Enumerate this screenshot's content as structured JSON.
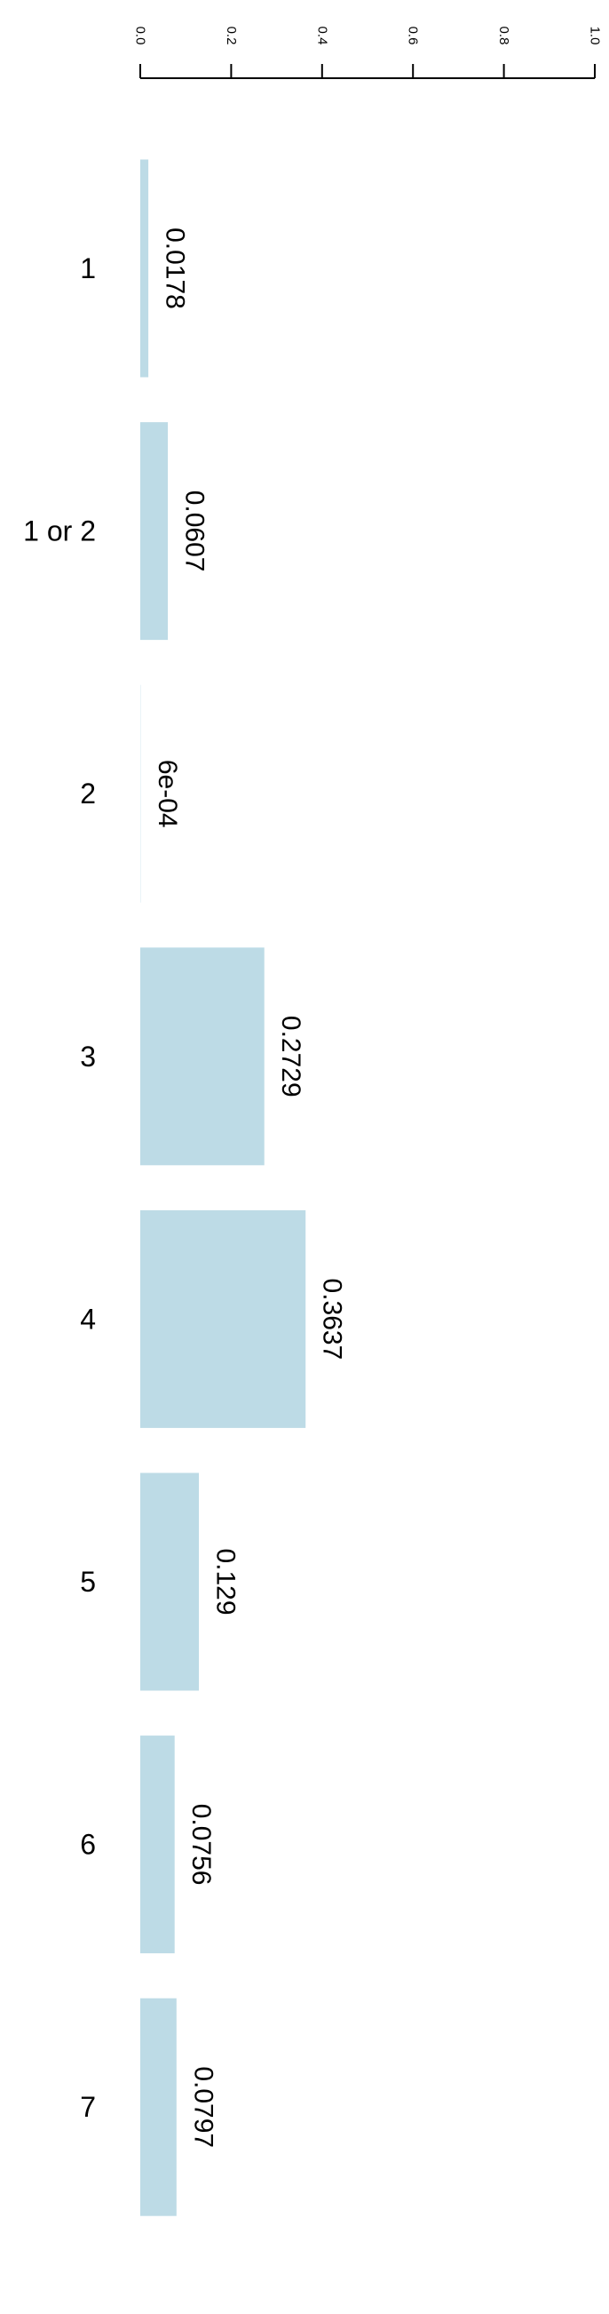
{
  "chart_data": {
    "type": "bar",
    "orientation": "horizontal",
    "categories": [
      "1",
      "1 or 2",
      "2",
      "3",
      "4",
      "5",
      "6",
      "7"
    ],
    "values": [
      0.0178,
      0.0607,
      0.0006,
      0.2729,
      0.3637,
      0.129,
      0.0756,
      0.0797
    ],
    "value_labels": [
      "0.0178",
      "0.0607",
      "6e-04",
      "0.2729",
      "0.3637",
      "0.129",
      "0.0756",
      "0.0797"
    ],
    "xlim": [
      0,
      1
    ],
    "x_ticks": [
      0.0,
      0.2,
      0.4,
      0.6,
      0.8,
      1.0
    ],
    "x_tick_labels": [
      "0.0",
      "0.2",
      "0.4",
      "0.6",
      "0.8",
      "1.0"
    ],
    "axis_position": "top",
    "grid": false,
    "legend": "none",
    "colors": {
      "bar": "#bddbe6",
      "axis": "#000000",
      "text": "#000000"
    }
  }
}
